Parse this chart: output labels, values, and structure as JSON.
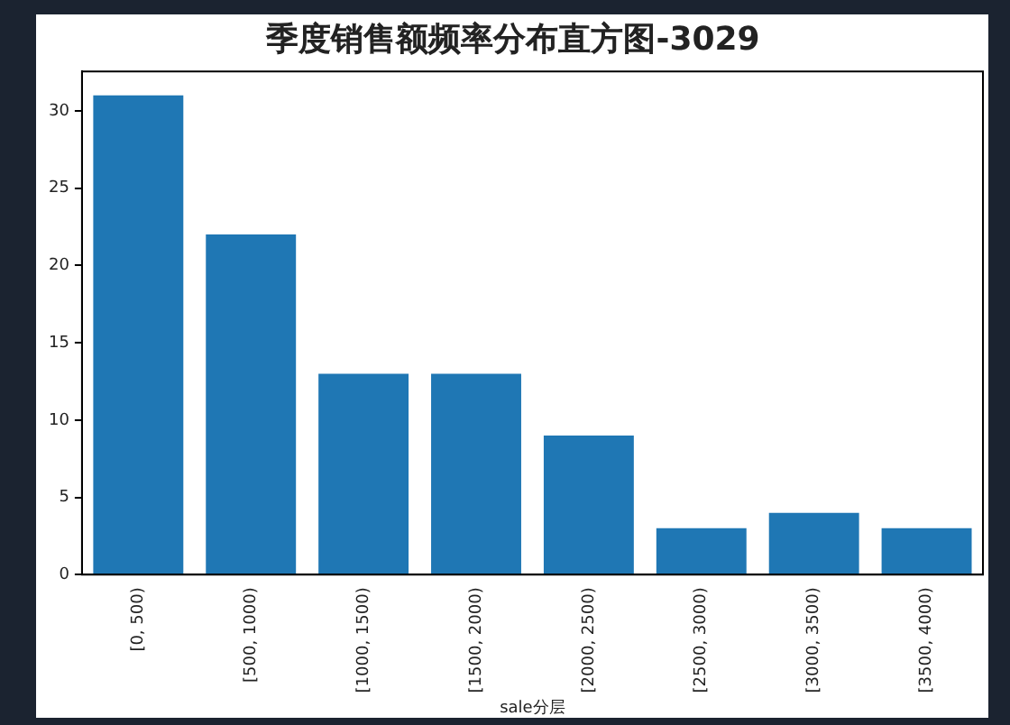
{
  "chart_data": {
    "type": "bar",
    "title": "季度销售额频率分布直方图-3029",
    "xlabel": "sale分层",
    "categories": [
      "[0, 500)",
      "[500, 1000)",
      "[1000, 1500)",
      "[1500, 2000)",
      "[2000, 2500)",
      "[2500, 3000)",
      "[3000, 3500)",
      "[3500, 4000)"
    ],
    "values": [
      31,
      22,
      13,
      13,
      9,
      3,
      4,
      3
    ],
    "color": "#1f77b4",
    "ylim": [
      0,
      32.55
    ],
    "yticks": [
      0,
      5,
      10,
      15,
      20,
      25,
      30
    ],
    "grid": false,
    "legend": false
  }
}
